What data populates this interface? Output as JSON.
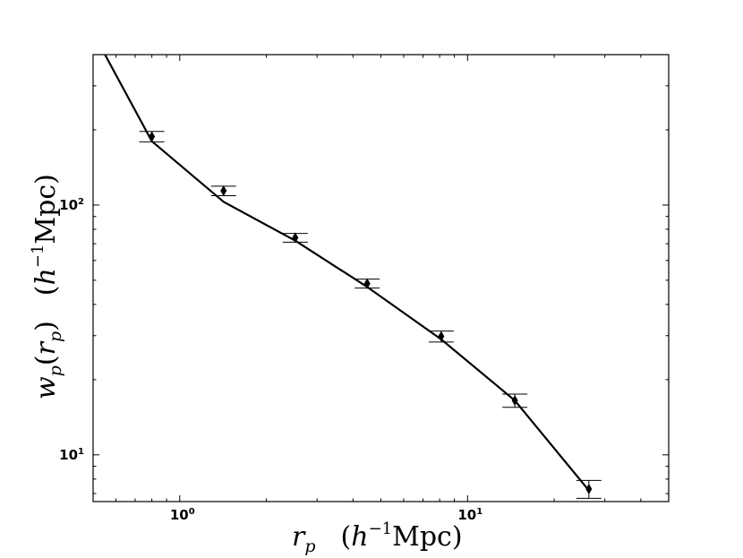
{
  "chart_data": {
    "type": "line",
    "xscale": "log",
    "yscale": "log",
    "xlim": [
      0.5,
      50
    ],
    "ylim": [
      6.5,
      400
    ],
    "grid": false,
    "xlabel": {
      "var": "r",
      "sub": "p",
      "unit_pre": "h",
      "unit_exp": "−1",
      "unit_post": "Mpc"
    },
    "ylabel": {
      "var": "w",
      "sub": "p",
      "arg": "r",
      "arg_sub": "p",
      "unit_pre": "h",
      "unit_exp": "−1",
      "unit_post": "Mpc"
    },
    "x_major_ticks": [
      {
        "value": 1,
        "base": "10",
        "exp": "0"
      },
      {
        "value": 10,
        "base": "10",
        "exp": "1"
      }
    ],
    "y_major_ticks": [
      {
        "value": 10,
        "base": "10",
        "exp": "1"
      },
      {
        "value": 100,
        "base": "10",
        "exp": "2"
      }
    ],
    "series": [
      {
        "kind": "errorbar",
        "marker": "thin-diamond",
        "color": "#000000",
        "x": [
          0.8,
          1.42,
          2.52,
          4.48,
          8.1,
          14.6,
          26.4
        ],
        "y": [
          188,
          114,
          74,
          48.5,
          29.8,
          16.5,
          7.3
        ],
        "yerr": [
          9,
          5,
          3,
          2,
          1.5,
          1.0,
          0.6
        ]
      },
      {
        "kind": "line",
        "color": "#000000",
        "x": [
          0.55,
          0.8,
          1.42,
          2.52,
          4.48,
          8.1,
          14.6,
          26.4
        ],
        "y": [
          400,
          180,
          103,
          72,
          47,
          29,
          16.5,
          7.2
        ]
      }
    ]
  }
}
